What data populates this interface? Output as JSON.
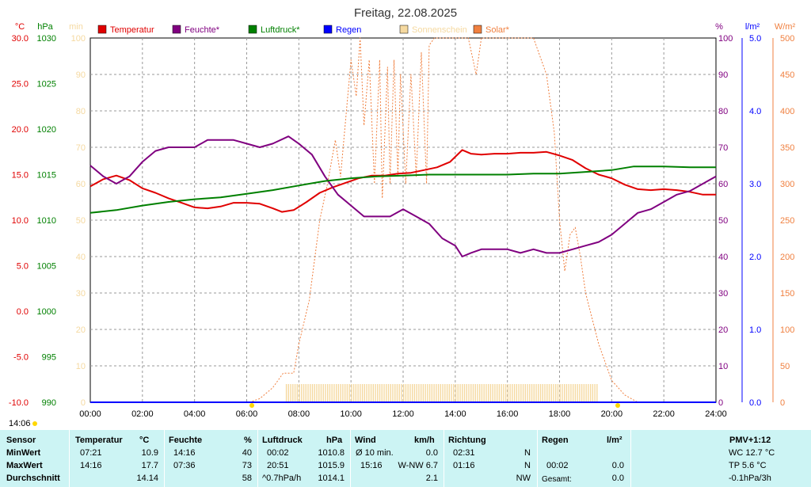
{
  "chart_data": {
    "type": "line",
    "title": "Freitag, 22.08.2025",
    "x_ticks": [
      "00:00",
      "02:00",
      "04:00",
      "06:00",
      "08:00",
      "10:00",
      "12:00",
      "14:00",
      "16:00",
      "18:00",
      "20:00",
      "22:00",
      "24:00"
    ],
    "xlim": [
      0,
      24
    ],
    "grid": true,
    "legend_placement": "top",
    "legend": [
      {
        "label": "Temperatur",
        "color": "#e00000"
      },
      {
        "label": "Feuchte*",
        "color": "#800080"
      },
      {
        "label": "Luftdruck*",
        "color": "#008000"
      },
      {
        "label": "Regen",
        "color": "#0000ff"
      },
      {
        "label": "Sonnenschein",
        "color": "#f5d9a0"
      },
      {
        "label": "Solar*",
        "color": "#f08040"
      }
    ],
    "axes": {
      "temp": {
        "unit": "°C",
        "color": "#e00000",
        "range": [
          -10,
          30
        ],
        "ticks": [
          "30.0",
          "25.0",
          "20.0",
          "15.0",
          "10.0",
          "5.0",
          "0.0",
          "-5.0",
          "-10.0"
        ]
      },
      "pressure": {
        "unit": "hPa",
        "color": "#008000",
        "range": [
          990,
          1030
        ],
        "ticks": [
          "1030",
          "1025",
          "1020",
          "1015",
          "1010",
          "1005",
          "1000",
          "995",
          "990"
        ]
      },
      "sun_minutes": {
        "unit": "min",
        "color": "#f5d9a0",
        "range": [
          0,
          100
        ],
        "ticks": [
          "100",
          "90",
          "80",
          "70",
          "60",
          "50",
          "40",
          "30",
          "20",
          "10",
          "0"
        ]
      },
      "humidity": {
        "unit": "%",
        "color": "#800080",
        "range": [
          0,
          100
        ],
        "ticks": [
          "100",
          "90",
          "80",
          "70",
          "60",
          "50",
          "40",
          "30",
          "20",
          "10",
          "0"
        ]
      },
      "rain": {
        "unit": "l/m²",
        "color": "#0000ff",
        "range": [
          0,
          5
        ],
        "ticks": [
          "5.0",
          "4.0",
          "3.0",
          "2.0",
          "1.0",
          "0.0"
        ]
      },
      "solar": {
        "unit": "W/m²",
        "color": "#f08040",
        "range": [
          0,
          500
        ],
        "ticks": [
          "500",
          "450",
          "400",
          "350",
          "300",
          "250",
          "200",
          "150",
          "100",
          "50",
          "0"
        ]
      }
    },
    "series": [
      {
        "name": "Temperatur",
        "color": "#e00000",
        "axis": "temp",
        "x": [
          0,
          0.5,
          1,
          1.5,
          2,
          2.5,
          3,
          3.5,
          4,
          4.5,
          5,
          5.5,
          6,
          6.5,
          7,
          7.35,
          7.8,
          8.3,
          8.8,
          9.3,
          9.8,
          10.3,
          10.8,
          11.3,
          11.8,
          12.3,
          12.8,
          13.3,
          13.8,
          14.27,
          14.6,
          15,
          15.5,
          16,
          16.5,
          17,
          17.5,
          18,
          18.5,
          19,
          19.5,
          20,
          20.5,
          21,
          21.5,
          22,
          22.5,
          23,
          23.5,
          24
        ],
        "y": [
          13.7,
          14.5,
          14.9,
          14.4,
          13.5,
          13.0,
          12.4,
          11.9,
          11.4,
          11.3,
          11.5,
          11.9,
          11.9,
          11.8,
          11.3,
          10.9,
          11.1,
          12.0,
          13.0,
          13.6,
          14.1,
          14.6,
          14.9,
          14.9,
          15.1,
          15.2,
          15.5,
          15.8,
          16.4,
          17.7,
          17.3,
          17.2,
          17.3,
          17.3,
          17.4,
          17.4,
          17.5,
          17.1,
          16.6,
          15.7,
          15.0,
          14.6,
          13.9,
          13.4,
          13.3,
          13.4,
          13.3,
          13.1,
          12.8,
          12.8
        ]
      },
      {
        "name": "Feuchte*",
        "color": "#800080",
        "axis": "humidity",
        "x": [
          0,
          0.5,
          1,
          1.5,
          2,
          2.5,
          3,
          3.5,
          4,
          4.5,
          5,
          5.5,
          6,
          6.5,
          7,
          7.6,
          8,
          8.5,
          9,
          9.5,
          10,
          10.5,
          11,
          11.5,
          12,
          12.5,
          13,
          13.5,
          14,
          14.27,
          14.6,
          15,
          15.5,
          16,
          16.5,
          17,
          17.5,
          18,
          18.5,
          19,
          19.5,
          20,
          20.5,
          21,
          21.5,
          22,
          22.5,
          23,
          23.5,
          24
        ],
        "y": [
          65,
          62,
          60,
          62,
          66,
          69,
          70,
          70,
          70,
          72,
          72,
          72,
          71,
          70,
          71,
          73,
          71,
          68,
          62,
          57,
          54,
          51,
          51,
          51,
          53,
          51,
          49,
          45,
          43,
          40,
          41,
          42,
          42,
          42,
          41,
          42,
          41,
          41,
          42,
          43,
          44,
          46,
          49,
          52,
          53,
          55,
          57,
          58,
          60,
          62
        ]
      },
      {
        "name": "Luftdruck*",
        "color": "#008000",
        "axis": "pressure",
        "x": [
          0,
          1,
          2,
          3,
          4,
          5,
          6,
          7,
          8,
          9,
          10,
          11,
          12,
          13,
          14,
          15,
          16,
          17,
          18,
          19,
          20,
          20.85,
          21.5,
          22,
          23,
          24
        ],
        "y": [
          1010.8,
          1011.1,
          1011.6,
          1012.0,
          1012.3,
          1012.5,
          1012.9,
          1013.3,
          1013.8,
          1014.3,
          1014.6,
          1014.8,
          1014.9,
          1015.0,
          1015.0,
          1015.0,
          1015.0,
          1015.1,
          1015.1,
          1015.3,
          1015.5,
          1015.9,
          1015.9,
          1015.9,
          1015.8,
          1015.8
        ]
      },
      {
        "name": "Regen",
        "color": "#0000ff",
        "axis": "rain",
        "x": [
          0,
          24
        ],
        "y": [
          0,
          0
        ]
      },
      {
        "name": "Solar*",
        "color": "#f08040",
        "axis": "solar",
        "x": [
          6.1,
          6.5,
          7,
          7.4,
          7.8,
          8,
          8.4,
          8.8,
          9.1,
          9.4,
          9.6,
          9.8,
          10,
          10.2,
          10.35,
          10.5,
          10.7,
          10.9,
          11.1,
          11.2,
          11.4,
          11.5,
          11.65,
          11.8,
          11.9,
          12.1,
          12.3,
          12.5,
          12.7,
          12.9,
          13,
          13.2,
          13.5,
          14,
          14.5,
          14.8,
          15,
          15.5,
          16,
          16.5,
          17,
          17.5,
          17.8,
          18,
          18.2,
          18.4,
          18.6,
          18.8,
          19,
          19.5,
          20,
          20.5,
          21,
          21.5
        ],
        "y": [
          0,
          5,
          20,
          40,
          40,
          80,
          140,
          250,
          300,
          360,
          310,
          390,
          470,
          420,
          500,
          380,
          470,
          300,
          470,
          280,
          460,
          300,
          470,
          310,
          450,
          300,
          450,
          310,
          480,
          300,
          490,
          500,
          500,
          500,
          500,
          450,
          500,
          500,
          500,
          500,
          500,
          450,
          370,
          250,
          180,
          230,
          240,
          200,
          150,
          80,
          30,
          10,
          0,
          0
        ]
      },
      {
        "name": "Sonnenschein",
        "color": "#f5d9a0",
        "axis": "sun_minutes",
        "bars_start": 7.5,
        "bars_end": 19.5,
        "value": 5
      }
    ]
  },
  "time_label": "14:06",
  "table": {
    "headers": {
      "sensor": "Sensor",
      "temp": "Temperatur",
      "temp_unit": "°C",
      "hum": "Feuchte",
      "hum_unit": "%",
      "press": "Luftdruck",
      "press_unit": "hPa",
      "wind": "Wind",
      "wind_unit": "km/h",
      "dir": "Richtung",
      "rain": "Regen",
      "rain_unit": "l/m²",
      "pmv": "PMV+1:12"
    },
    "rows": [
      {
        "label": "MinWert",
        "temp_time": "07:21",
        "temp_val": "10.9",
        "hum_time": "14:16",
        "hum_val": "40",
        "press_time": "00:02",
        "press_val": "1010.8",
        "wind_time": "Ø 10 min.",
        "wind_val": "0.0",
        "dir_time": "02:31",
        "dir_val": "N",
        "rain_time": "",
        "rain_val": "",
        "extra": "WC 12.7 °C"
      },
      {
        "label": "MaxWert",
        "temp_time": "14:16",
        "temp_val": "17.7",
        "hum_time": "07:36",
        "hum_val": "73",
        "press_time": "20:51",
        "press_val": "1015.9",
        "wind_time": "15:16",
        "wind_val": "W-NW 6.7",
        "dir_time": "01:16",
        "dir_val": "N",
        "rain_time": "00:02",
        "rain_val": "0.0",
        "extra": "TP 5.6 °C"
      },
      {
        "label": "Durchschnitt",
        "temp_time": "",
        "temp_val": "14.14",
        "hum_time": "",
        "hum_val": "58",
        "press_time": "^0.7hPa/h",
        "press_val": "1014.1",
        "wind_time": "",
        "wind_val": "2.1",
        "dir_time": "",
        "dir_val": "NW",
        "rain_time": "Gesamt:",
        "rain_val": "0.0",
        "extra": "-0.1hPa/3h"
      }
    ]
  }
}
